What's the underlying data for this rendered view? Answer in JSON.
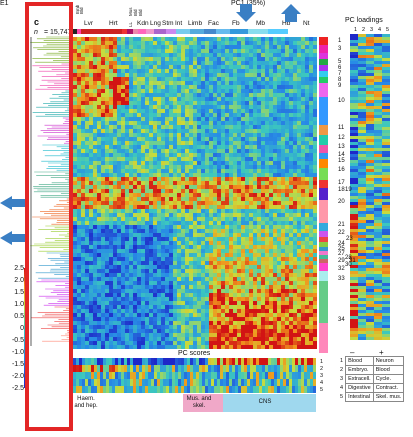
{
  "page_label": "E1",
  "panel_letter": "c",
  "n_label": "n",
  "n_value": "= 15,747",
  "pc1_label": "PC1 (35%)",
  "pc_loadings_title": "PC loadings",
  "pc_scores_title": "PC scores",
  "pc_numbers": [
    "1",
    "2",
    "3",
    "4",
    "5"
  ],
  "tissues": [
    "Lvr",
    "Hrt",
    "Kdn",
    "Lng",
    "Stm",
    "Int",
    "Limb",
    "Fac",
    "Fb",
    "Mb",
    "Hb",
    "Nt"
  ],
  "small_tissues": [
    "Emb",
    "Bld",
    "Mus",
    "Bld",
    "Bld",
    "LL"
  ],
  "clusters": [
    "1",
    "3",
    "5",
    "6",
    "7",
    "8",
    "9",
    "10",
    "11",
    "12",
    "13",
    "14",
    "15",
    "16",
    "17",
    "18",
    "19",
    "20",
    "21",
    "22",
    "23",
    "24",
    "25",
    "27",
    "28",
    "29",
    "30",
    "31",
    "32",
    "33",
    "34"
  ],
  "scale_ticks": [
    "2.5",
    "2.0",
    "1.5",
    "1.0",
    "0.5",
    "0",
    "-0.5",
    "-1.0",
    "-1.5",
    "-2.0",
    "-2.5"
  ],
  "legend": {
    "minus": "–",
    "plus": "+",
    "rows": [
      {
        "n": "1",
        "neg": "Blood",
        "pos": "Neuron"
      },
      {
        "n": "2",
        "neg": "Embryo.",
        "pos": "Blood"
      },
      {
        "n": "3",
        "neg": "Extracell.",
        "pos": "Cycle."
      },
      {
        "n": "4",
        "neg": "Digestive",
        "pos": "Contract."
      },
      {
        "n": "5",
        "neg": "Intestinal",
        "pos": "Skel. mus."
      }
    ]
  },
  "bottom_groups": [
    {
      "label": "Haem. and hep.",
      "color": "#ffffff"
    },
    {
      "label": "Mus. and skel.",
      "color": "#f0a8c8"
    },
    {
      "label": "CNS",
      "color": "#9fd8ee"
    }
  ],
  "colors": {
    "highlight": "#e32626",
    "arrow": "#3a7fc4",
    "heat_low": "#1a2fd6",
    "heat_mid": "#28c8c8",
    "heat_high": "#e02010"
  }
}
